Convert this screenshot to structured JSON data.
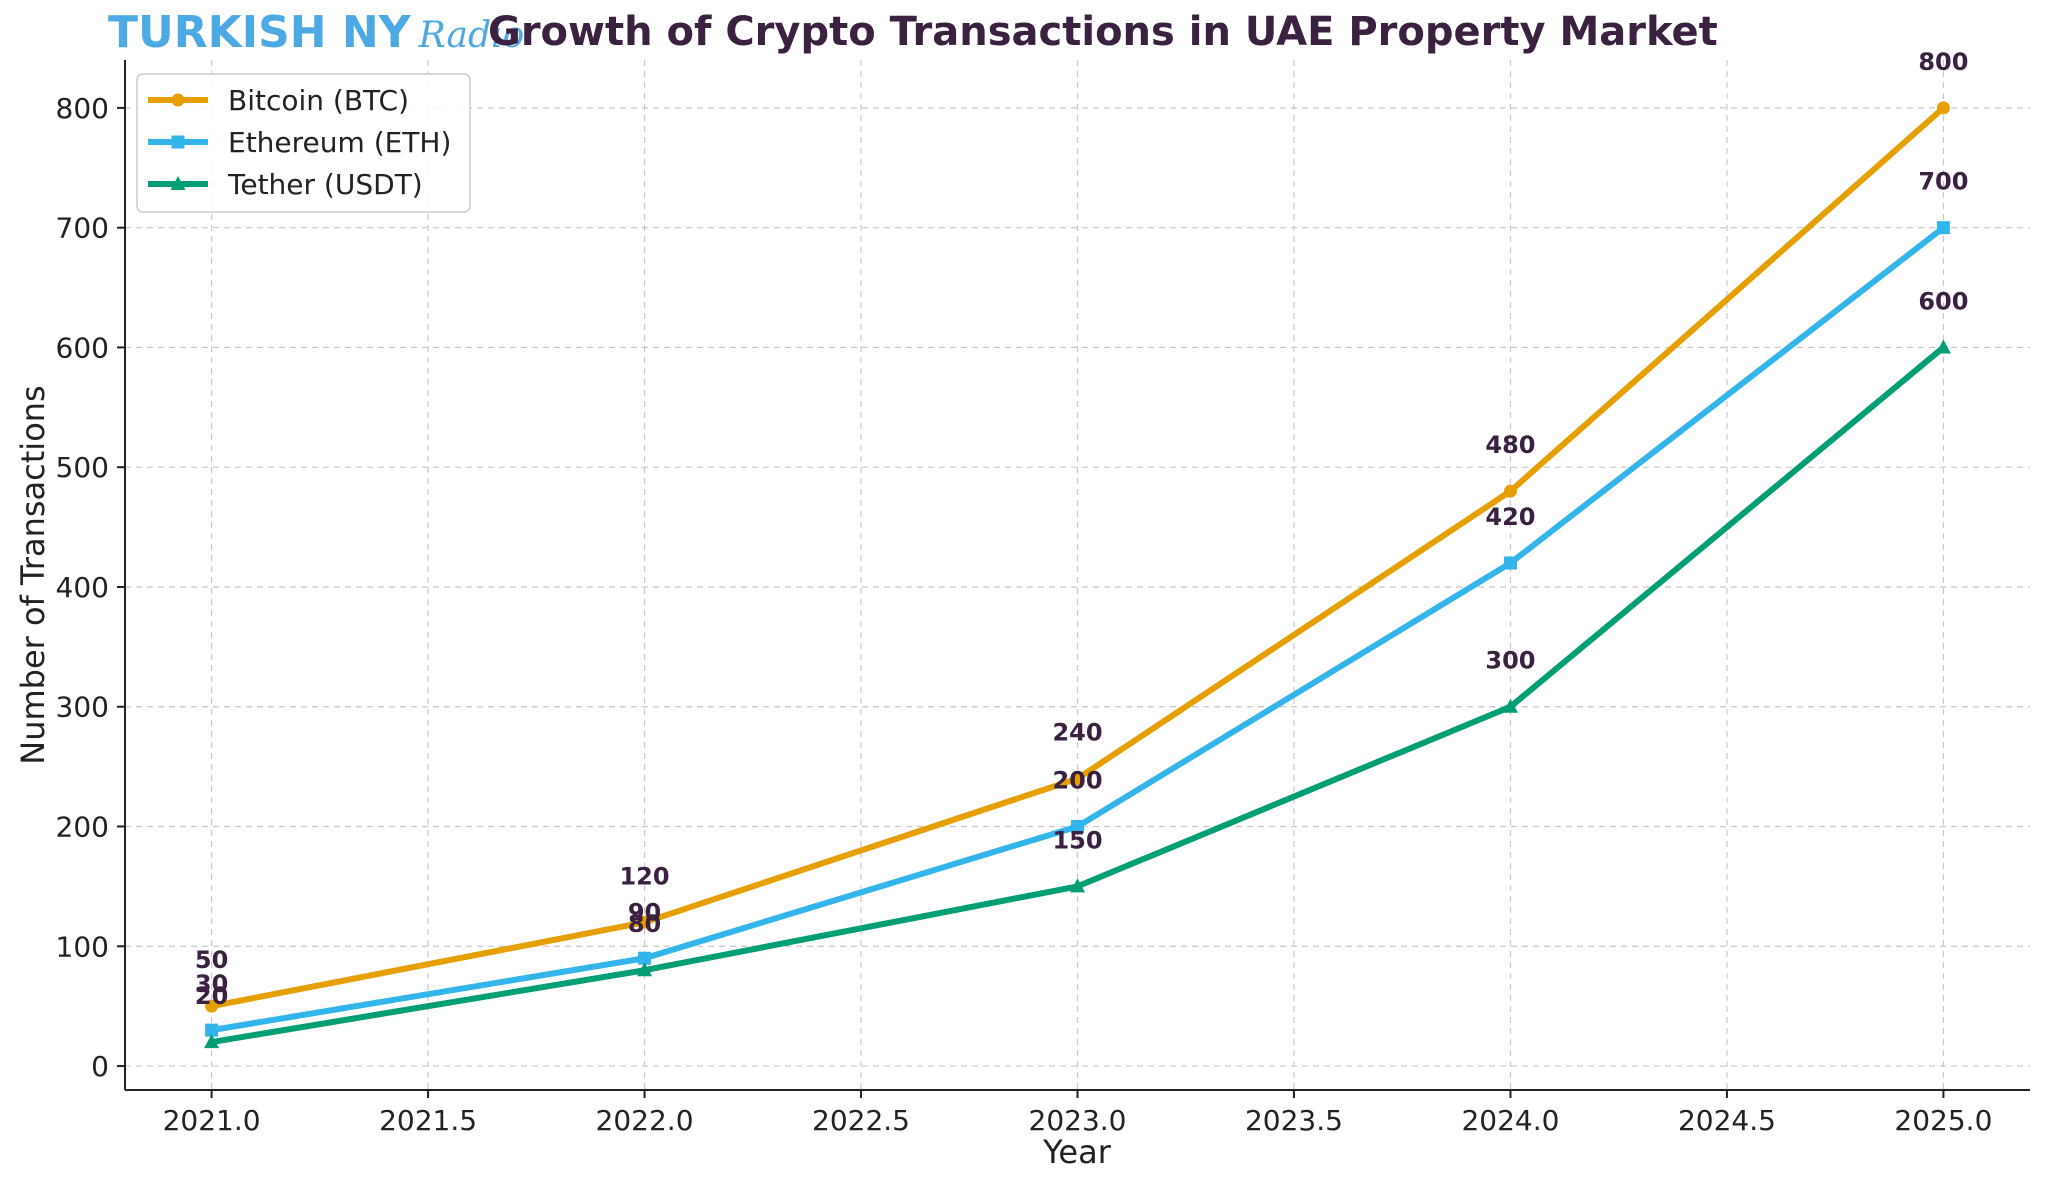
{
  "brand": {
    "name": "TURKISH NY",
    "script": "Radio",
    "color": "#4da9e4"
  },
  "chart_data": {
    "type": "line",
    "title": "Growth of Crypto Transactions in UAE Property Market",
    "xlabel": "Year",
    "ylabel": "Number of Transactions",
    "x": [
      2021.0,
      2022.0,
      2023.0,
      2024.0,
      2025.0
    ],
    "xlim": [
      2020.8,
      2025.2
    ],
    "ylim": [
      -20,
      840
    ],
    "xticks": [
      "2021.0",
      "2021.5",
      "2022.0",
      "2022.5",
      "2023.0",
      "2023.5",
      "2024.0",
      "2024.5",
      "2025.0"
    ],
    "yticks": [
      "0",
      "100",
      "200",
      "300",
      "400",
      "500",
      "600",
      "700",
      "800"
    ],
    "grid": true,
    "legend_position": "top-left",
    "series": [
      {
        "name": "Bitcoin (BTC)",
        "values": [
          50,
          120,
          240,
          480,
          800
        ],
        "color": "#e69f00",
        "marker": "circle",
        "labels": [
          "50",
          "120",
          "240",
          "480",
          "800"
        ]
      },
      {
        "name": "Ethereum (ETH)",
        "values": [
          30,
          90,
          200,
          420,
          700
        ],
        "color": "#33b5eb",
        "marker": "square",
        "labels": [
          "30",
          "90",
          "200",
          "420",
          "700"
        ]
      },
      {
        "name": "Tether (USDT)",
        "values": [
          20,
          80,
          150,
          300,
          600
        ],
        "color": "#009e73",
        "marker": "triangle",
        "labels": [
          "20",
          "80",
          "150",
          "300",
          "600"
        ]
      }
    ],
    "title_color": "#3b2140",
    "label_color": "#3b2140"
  }
}
